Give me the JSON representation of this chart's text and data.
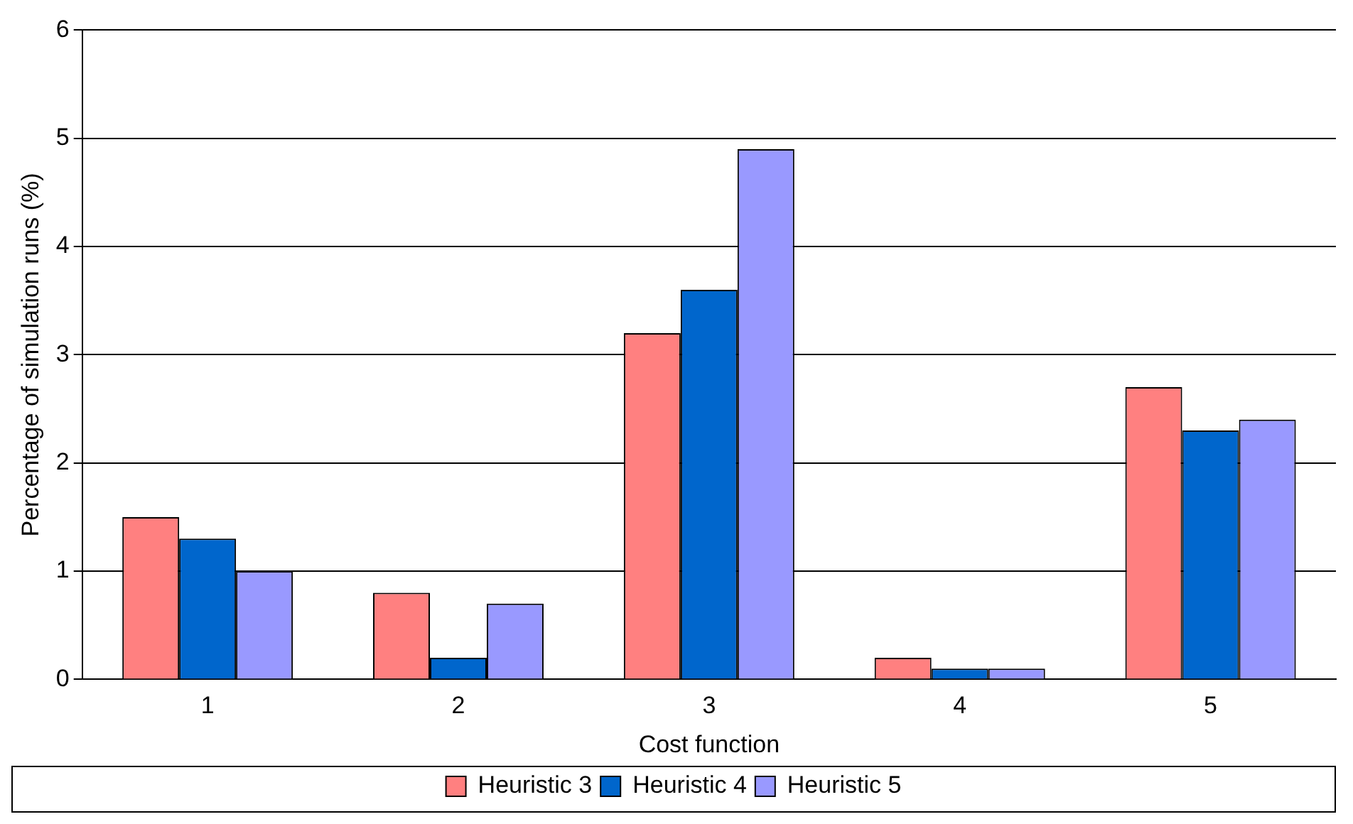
{
  "chart_data": {
    "type": "bar",
    "xlabel": "Cost function",
    "ylabel": "Percentage of simulation runs (%)",
    "categories": [
      "1",
      "2",
      "3",
      "4",
      "5"
    ],
    "series": [
      {
        "name": "Heuristic 3",
        "color": "#ff8080",
        "values": [
          1.5,
          0.8,
          3.2,
          0.2,
          2.7
        ]
      },
      {
        "name": "Heuristic 4",
        "color": "#0066cc",
        "values": [
          1.3,
          0.2,
          3.6,
          0.1,
          2.3
        ]
      },
      {
        "name": "Heuristic 5",
        "color": "#9999ff",
        "values": [
          1.0,
          0.7,
          4.9,
          0.1,
          2.4
        ]
      }
    ],
    "ylim": [
      0,
      6
    ],
    "yticks": [
      0,
      1,
      2,
      3,
      4,
      5,
      6
    ],
    "grid": "y",
    "legend": "bottom"
  }
}
